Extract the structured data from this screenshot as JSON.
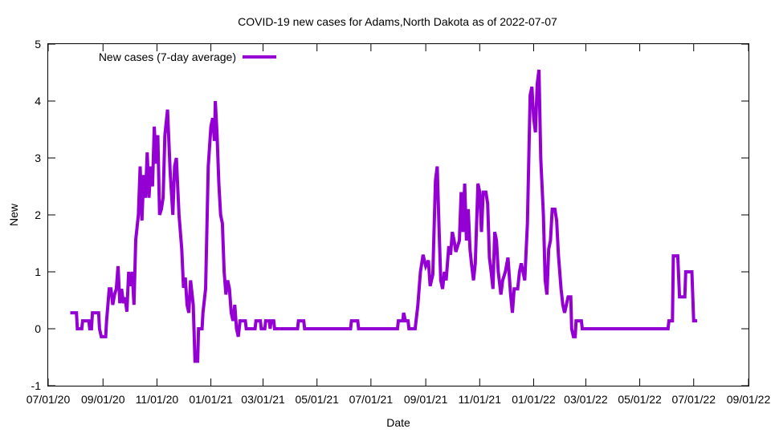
{
  "chart_data": {
    "type": "line",
    "title": "COVID-19 new cases for Adams,North Dakota as of 2022-07-07",
    "xlabel": "Date",
    "ylabel": "New",
    "ylim": [
      -1,
      5
    ],
    "xlim": [
      "2020-07-01",
      "2022-09-01"
    ],
    "yticks": [
      -1,
      0,
      1,
      2,
      3,
      4,
      5
    ],
    "yticklabels": [
      "-1",
      "0",
      "1",
      "2",
      "3",
      "4",
      "5"
    ],
    "xticks": [
      "2020-07-01",
      "2020-09-01",
      "2020-11-01",
      "2021-01-01",
      "2021-03-01",
      "2021-05-01",
      "2021-07-01",
      "2021-09-01",
      "2021-11-01",
      "2022-01-01",
      "2022-03-01",
      "2022-05-01",
      "2022-07-01",
      "2022-09-01"
    ],
    "xticklabels": [
      "07/01/20",
      "09/01/20",
      "11/01/20",
      "01/01/21",
      "03/01/21",
      "05/01/21",
      "07/01/21",
      "09/01/21",
      "11/01/21",
      "01/01/22",
      "03/01/22",
      "05/01/22",
      "07/01/22",
      "09/01/22"
    ],
    "grid": false,
    "legend_position": "top-left",
    "series": [
      {
        "name": "New cases (7-day average)",
        "color": "#9400d3",
        "points": [
          [
            "2020-07-26",
            0.28
          ],
          [
            "2020-08-02",
            0.28
          ],
          [
            "2020-08-03",
            0.0
          ],
          [
            "2020-08-08",
            0.0
          ],
          [
            "2020-08-09",
            0.14
          ],
          [
            "2020-08-16",
            0.14
          ],
          [
            "2020-08-17",
            0.0
          ],
          [
            "2020-08-19",
            0.0
          ],
          [
            "2020-08-20",
            0.28
          ],
          [
            "2020-08-27",
            0.28
          ],
          [
            "2020-08-28",
            0.0
          ],
          [
            "2020-08-30",
            -0.14
          ],
          [
            "2020-09-04",
            -0.14
          ],
          [
            "2020-09-05",
            0.14
          ],
          [
            "2020-09-08",
            0.7
          ],
          [
            "2020-09-10",
            0.7
          ],
          [
            "2020-09-12",
            0.42
          ],
          [
            "2020-09-14",
            0.6
          ],
          [
            "2020-09-16",
            0.7
          ],
          [
            "2020-09-18",
            1.1
          ],
          [
            "2020-09-20",
            0.45
          ],
          [
            "2020-09-22",
            0.7
          ],
          [
            "2020-09-24",
            0.45
          ],
          [
            "2020-09-26",
            0.55
          ],
          [
            "2020-09-28",
            0.3
          ],
          [
            "2020-09-30",
            1.0
          ],
          [
            "2020-10-02",
            0.75
          ],
          [
            "2020-10-04",
            1.0
          ],
          [
            "2020-10-06",
            0.42
          ],
          [
            "2020-10-08",
            1.56
          ],
          [
            "2020-10-11",
            2.0
          ],
          [
            "2020-10-13",
            2.85
          ],
          [
            "2020-10-15",
            1.9
          ],
          [
            "2020-10-17",
            2.7
          ],
          [
            "2020-10-19",
            2.3
          ],
          [
            "2020-10-21",
            3.1
          ],
          [
            "2020-10-23",
            2.3
          ],
          [
            "2020-10-25",
            2.85
          ],
          [
            "2020-10-27",
            2.5
          ],
          [
            "2020-10-29",
            3.55
          ],
          [
            "2020-10-31",
            2.9
          ],
          [
            "2020-11-02",
            3.4
          ],
          [
            "2020-11-04",
            2.0
          ],
          [
            "2020-11-06",
            2.1
          ],
          [
            "2020-11-08",
            2.3
          ],
          [
            "2020-11-10",
            3.4
          ],
          [
            "2020-11-13",
            3.85
          ],
          [
            "2020-11-16",
            2.75
          ],
          [
            "2020-11-19",
            2.0
          ],
          [
            "2020-11-21",
            2.85
          ],
          [
            "2020-11-23",
            3.0
          ],
          [
            "2020-11-26",
            2.0
          ],
          [
            "2020-11-29",
            1.4
          ],
          [
            "2020-12-01",
            0.72
          ],
          [
            "2020-12-03",
            0.9
          ],
          [
            "2020-12-05",
            0.42
          ],
          [
            "2020-12-07",
            0.28
          ],
          [
            "2020-12-09",
            0.85
          ],
          [
            "2020-12-12",
            0.42
          ],
          [
            "2020-12-14",
            -0.57
          ],
          [
            "2020-12-17",
            -0.57
          ],
          [
            "2020-12-18",
            0.0
          ],
          [
            "2020-12-22",
            0.0
          ],
          [
            "2020-12-23",
            0.28
          ],
          [
            "2020-12-26",
            0.7
          ],
          [
            "2020-12-29",
            2.85
          ],
          [
            "2021-01-01",
            3.55
          ],
          [
            "2021-01-03",
            3.7
          ],
          [
            "2021-01-05",
            3.3
          ],
          [
            "2021-01-06",
            4.0
          ],
          [
            "2021-01-08",
            3.4
          ],
          [
            "2021-01-10",
            2.55
          ],
          [
            "2021-01-12",
            2.0
          ],
          [
            "2021-01-14",
            1.85
          ],
          [
            "2021-01-16",
            1.0
          ],
          [
            "2021-01-18",
            0.6
          ],
          [
            "2021-01-20",
            0.85
          ],
          [
            "2021-01-22",
            0.7
          ],
          [
            "2021-01-24",
            0.28
          ],
          [
            "2021-01-26",
            0.14
          ],
          [
            "2021-01-28",
            0.42
          ],
          [
            "2021-01-30",
            0.0
          ],
          [
            "2021-02-01",
            -0.14
          ],
          [
            "2021-02-03",
            0.14
          ],
          [
            "2021-02-09",
            0.14
          ],
          [
            "2021-02-10",
            0.0
          ],
          [
            "2021-02-20",
            0.0
          ],
          [
            "2021-02-21",
            0.14
          ],
          [
            "2021-02-26",
            0.14
          ],
          [
            "2021-02-27",
            0.0
          ],
          [
            "2021-03-03",
            0.0
          ],
          [
            "2021-03-04",
            0.14
          ],
          [
            "2021-03-08",
            0.14
          ],
          [
            "2021-03-09",
            0.0
          ],
          [
            "2021-03-10",
            0.14
          ],
          [
            "2021-03-13",
            0.14
          ],
          [
            "2021-03-14",
            0.0
          ],
          [
            "2021-04-09",
            0.0
          ],
          [
            "2021-04-10",
            0.14
          ],
          [
            "2021-04-16",
            0.14
          ],
          [
            "2021-04-17",
            0.0
          ],
          [
            "2021-06-08",
            0.0
          ],
          [
            "2021-06-09",
            0.14
          ],
          [
            "2021-06-16",
            0.14
          ],
          [
            "2021-06-17",
            0.0
          ],
          [
            "2021-07-31",
            0.0
          ],
          [
            "2021-08-01",
            0.14
          ],
          [
            "2021-08-06",
            0.14
          ],
          [
            "2021-08-07",
            0.28
          ],
          [
            "2021-08-09",
            0.14
          ],
          [
            "2021-08-12",
            0.14
          ],
          [
            "2021-08-13",
            0.0
          ],
          [
            "2021-08-20",
            0.0
          ],
          [
            "2021-08-23",
            0.4
          ],
          [
            "2021-08-26",
            1.0
          ],
          [
            "2021-08-29",
            1.3
          ],
          [
            "2021-09-01",
            1.1
          ],
          [
            "2021-09-04",
            1.2
          ],
          [
            "2021-09-06",
            0.75
          ],
          [
            "2021-09-09",
            0.95
          ],
          [
            "2021-09-12",
            2.6
          ],
          [
            "2021-09-14",
            2.85
          ],
          [
            "2021-09-16",
            1.8
          ],
          [
            "2021-09-18",
            0.85
          ],
          [
            "2021-09-20",
            0.7
          ],
          [
            "2021-09-22",
            1.0
          ],
          [
            "2021-09-24",
            0.85
          ],
          [
            "2021-09-27",
            1.45
          ],
          [
            "2021-09-29",
            1.3
          ],
          [
            "2021-10-01",
            1.7
          ],
          [
            "2021-10-03",
            1.55
          ],
          [
            "2021-10-05",
            1.35
          ],
          [
            "2021-10-07",
            1.45
          ],
          [
            "2021-10-09",
            1.55
          ],
          [
            "2021-10-11",
            2.4
          ],
          [
            "2021-10-13",
            1.7
          ],
          [
            "2021-10-15",
            2.55
          ],
          [
            "2021-10-17",
            1.55
          ],
          [
            "2021-10-19",
            2.1
          ],
          [
            "2021-10-21",
            1.4
          ],
          [
            "2021-10-23",
            1.1
          ],
          [
            "2021-10-25",
            0.85
          ],
          [
            "2021-10-27",
            1.15
          ],
          [
            "2021-10-30",
            2.55
          ],
          [
            "2021-11-01",
            2.4
          ],
          [
            "2021-11-03",
            1.7
          ],
          [
            "2021-11-05",
            2.4
          ],
          [
            "2021-11-08",
            2.4
          ],
          [
            "2021-11-10",
            2.2
          ],
          [
            "2021-11-12",
            1.25
          ],
          [
            "2021-11-14",
            1.0
          ],
          [
            "2021-11-16",
            0.7
          ],
          [
            "2021-11-18",
            1.7
          ],
          [
            "2021-11-20",
            1.55
          ],
          [
            "2021-11-22",
            1.0
          ],
          [
            "2021-11-25",
            0.6
          ],
          [
            "2021-11-27",
            0.85
          ],
          [
            "2021-11-30",
            1.0
          ],
          [
            "2021-12-03",
            1.25
          ],
          [
            "2021-12-06",
            0.6
          ],
          [
            "2021-12-08",
            0.28
          ],
          [
            "2021-12-10",
            0.7
          ],
          [
            "2021-12-14",
            0.7
          ],
          [
            "2021-12-16",
            1.0
          ],
          [
            "2021-12-18",
            1.15
          ],
          [
            "2021-12-20",
            1.0
          ],
          [
            "2021-12-22",
            0.85
          ],
          [
            "2021-12-25",
            1.85
          ],
          [
            "2021-12-28",
            4.1
          ],
          [
            "2021-12-30",
            4.25
          ],
          [
            "2022-01-01",
            3.7
          ],
          [
            "2022-01-03",
            3.45
          ],
          [
            "2022-01-05",
            4.3
          ],
          [
            "2022-01-07",
            4.55
          ],
          [
            "2022-01-09",
            3.0
          ],
          [
            "2022-01-12",
            2.0
          ],
          [
            "2022-01-14",
            0.85
          ],
          [
            "2022-01-16",
            0.6
          ],
          [
            "2022-01-18",
            1.4
          ],
          [
            "2022-01-20",
            1.55
          ],
          [
            "2022-01-22",
            2.1
          ],
          [
            "2022-01-25",
            2.1
          ],
          [
            "2022-01-27",
            1.9
          ],
          [
            "2022-01-29",
            1.3
          ],
          [
            "2022-02-01",
            0.7
          ],
          [
            "2022-02-03",
            0.42
          ],
          [
            "2022-02-05",
            0.28
          ],
          [
            "2022-02-07",
            0.42
          ],
          [
            "2022-02-09",
            0.56
          ],
          [
            "2022-02-12",
            0.56
          ],
          [
            "2022-02-13",
            0.0
          ],
          [
            "2022-02-15",
            -0.14
          ],
          [
            "2022-02-17",
            -0.14
          ],
          [
            "2022-02-18",
            0.14
          ],
          [
            "2022-02-24",
            0.14
          ],
          [
            "2022-02-25",
            0.0
          ],
          [
            "2022-06-02",
            0.0
          ],
          [
            "2022-06-03",
            0.14
          ],
          [
            "2022-06-07",
            0.14
          ],
          [
            "2022-06-08",
            1.28
          ],
          [
            "2022-06-13",
            1.28
          ],
          [
            "2022-06-15",
            0.56
          ],
          [
            "2022-06-21",
            0.56
          ],
          [
            "2022-06-22",
            1.0
          ],
          [
            "2022-06-29",
            1.0
          ],
          [
            "2022-07-01",
            0.14
          ],
          [
            "2022-07-05",
            0.14
          ]
        ]
      }
    ]
  }
}
